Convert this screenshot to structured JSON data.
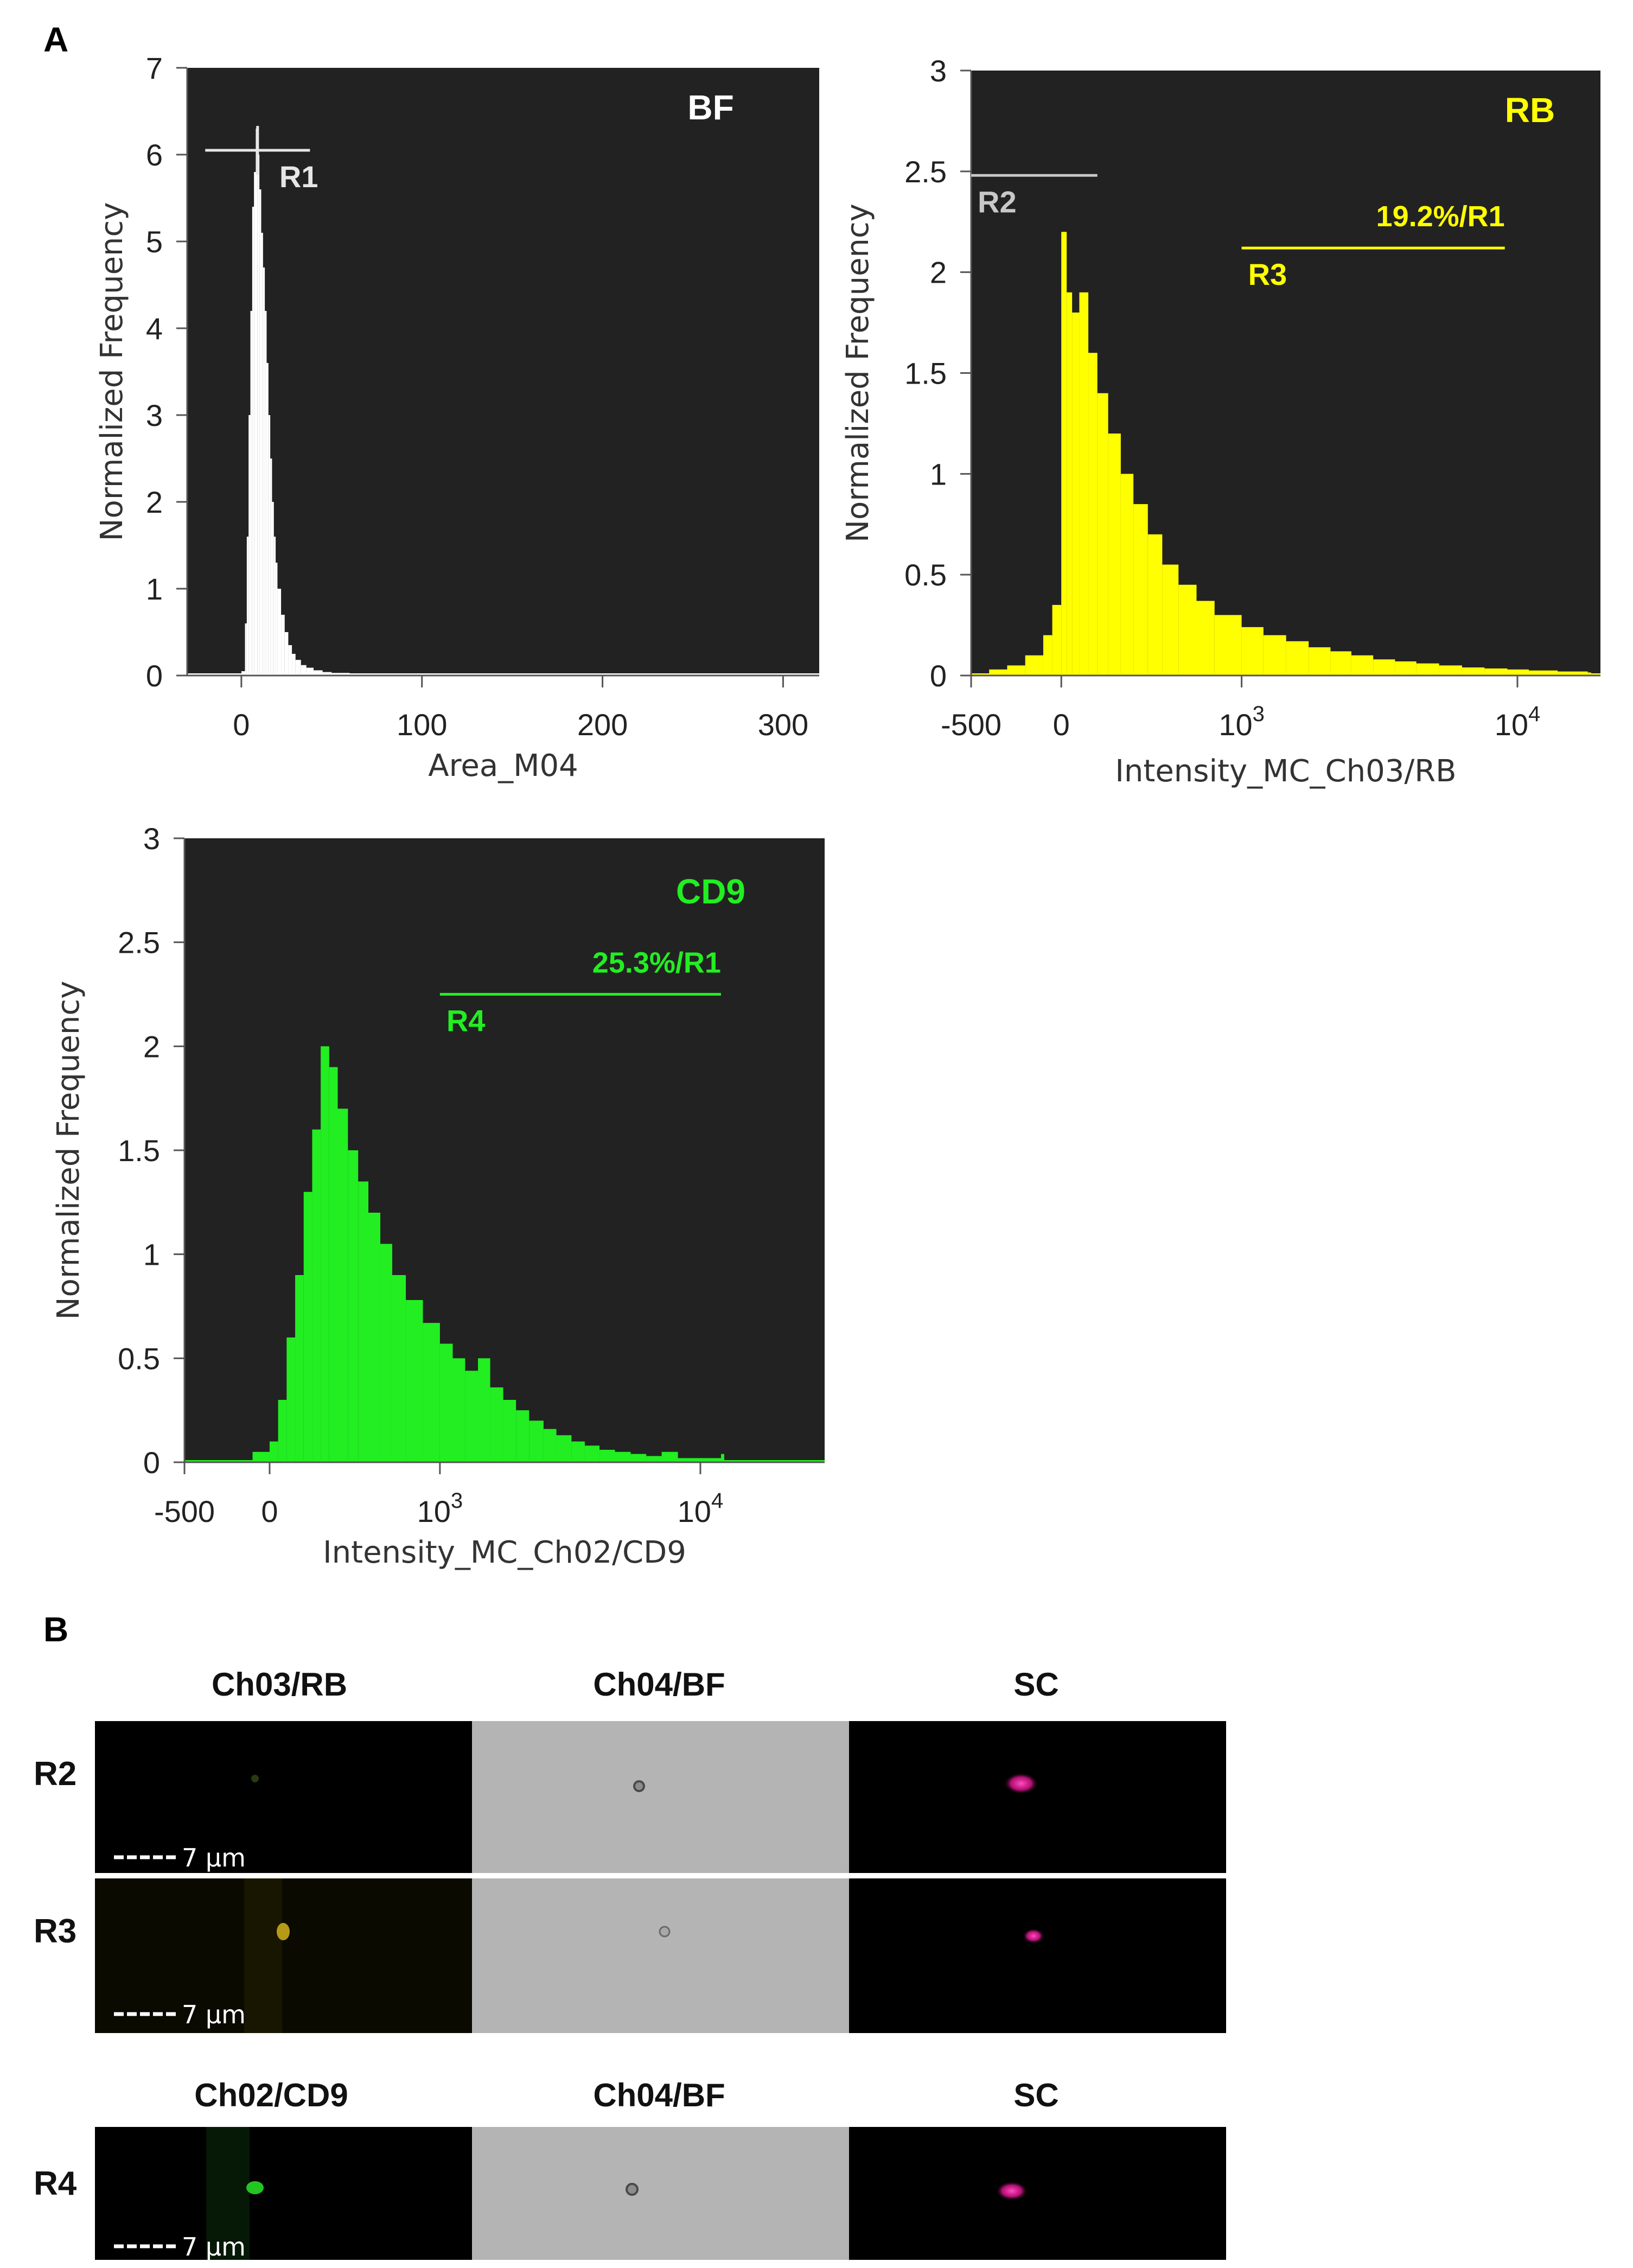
{
  "panel_a_label": "A",
  "panel_b_label": "B",
  "chart_data": [
    {
      "type": "histogram",
      "channel_label": "BF",
      "label_color": "#ffffff",
      "fill_color": "#ffffff",
      "xlabel": "Area_M04",
      "ylabel": "Normalized Frequency",
      "xlim": [
        -30,
        320
      ],
      "ylim": [
        0,
        7
      ],
      "xtick_labels": [
        "0",
        "100",
        "200",
        "300"
      ],
      "xtick_values": [
        0,
        100,
        200,
        300
      ],
      "ytick_labels": [
        "0",
        "1",
        "2",
        "3",
        "4",
        "5",
        "6",
        "7"
      ],
      "ytick_values": [
        0,
        1,
        2,
        3,
        4,
        5,
        6,
        7
      ],
      "gates": [
        {
          "name": "R1",
          "x_start": -20,
          "x_end": 38,
          "y": 6.05,
          "color": "#e6e6e6",
          "marker_x": 9,
          "percent": ""
        }
      ],
      "bins": [
        [
          0,
          0.05
        ],
        [
          2,
          0.6
        ],
        [
          3,
          1.6
        ],
        [
          4,
          3.0
        ],
        [
          5,
          4.2
        ],
        [
          6,
          5.4
        ],
        [
          7,
          5.8
        ],
        [
          8,
          6.3
        ],
        [
          9,
          6.0
        ],
        [
          10,
          5.6
        ],
        [
          11,
          5.1
        ],
        [
          12,
          4.7
        ],
        [
          13,
          4.2
        ],
        [
          14,
          3.6
        ],
        [
          15,
          3.0
        ],
        [
          16,
          2.5
        ],
        [
          17,
          2.0
        ],
        [
          18,
          1.6
        ],
        [
          19,
          1.3
        ],
        [
          20,
          1.0
        ],
        [
          22,
          0.7
        ],
        [
          24,
          0.5
        ],
        [
          26,
          0.35
        ],
        [
          28,
          0.25
        ],
        [
          30,
          0.18
        ],
        [
          33,
          0.12
        ],
        [
          36,
          0.09
        ],
        [
          40,
          0.06
        ],
        [
          45,
          0.04
        ],
        [
          50,
          0.03
        ],
        [
          60,
          0.02
        ],
        [
          70,
          0.015
        ],
        [
          80,
          0.01
        ]
      ]
    },
    {
      "type": "histogram",
      "channel_label": "RB",
      "label_color": "#ffff00",
      "fill_color": "#ffff00",
      "xlabel": "Intensity_MC_Ch03/RB",
      "ylabel": "Normalized Frequency",
      "xlim": [
        -500,
        20000
      ],
      "ylim": [
        0,
        3
      ],
      "xtick_labels": [
        "-500",
        "0",
        "10^3",
        "10^4"
      ],
      "xtick_values": [
        -500,
        0,
        1000,
        10000
      ],
      "ytick_labels": [
        "0",
        "0.5",
        "1",
        "1.5",
        "2",
        "2.5",
        "3"
      ],
      "ytick_values": [
        0,
        0.5,
        1,
        1.5,
        2,
        2.5,
        3
      ],
      "gates": [
        {
          "name": "R2",
          "x_start": -500,
          "x_end": 200,
          "y": 2.48,
          "color": "#c8c8c8",
          "percent": ""
        },
        {
          "name": "R3",
          "x_start": 1000,
          "x_end": 9000,
          "y": 2.12,
          "color": "#ffff00",
          "percent": "19.2%/R1"
        }
      ],
      "bins": [
        [
          -400,
          0.03
        ],
        [
          -300,
          0.05
        ],
        [
          -200,
          0.1
        ],
        [
          -100,
          0.2
        ],
        [
          -50,
          0.35
        ],
        [
          0,
          2.2
        ],
        [
          30,
          1.9
        ],
        [
          60,
          1.8
        ],
        [
          100,
          1.9
        ],
        [
          150,
          1.6
        ],
        [
          200,
          1.4
        ],
        [
          260,
          1.2
        ],
        [
          330,
          1.0
        ],
        [
          400,
          0.85
        ],
        [
          480,
          0.7
        ],
        [
          560,
          0.55
        ],
        [
          650,
          0.45
        ],
        [
          750,
          0.37
        ],
        [
          850,
          0.3
        ],
        [
          1000,
          0.24
        ],
        [
          1200,
          0.2
        ],
        [
          1450,
          0.17
        ],
        [
          1750,
          0.14
        ],
        [
          2100,
          0.12
        ],
        [
          2500,
          0.1
        ],
        [
          3000,
          0.08
        ],
        [
          3600,
          0.07
        ],
        [
          4300,
          0.06
        ],
        [
          5200,
          0.05
        ],
        [
          6300,
          0.04
        ],
        [
          7600,
          0.035
        ],
        [
          9200,
          0.03
        ],
        [
          11000,
          0.025
        ],
        [
          14000,
          0.02
        ],
        [
          18000,
          0.015
        ]
      ]
    },
    {
      "type": "histogram",
      "channel_label": "CD9",
      "label_color": "#22ee22",
      "fill_color": "#22ee22",
      "xlabel": "Intensity_MC_Ch02/CD9",
      "ylabel": "Normalized Frequency",
      "xlim": [
        -500,
        30000
      ],
      "ylim": [
        0,
        3
      ],
      "xtick_labels": [
        "-500",
        "0",
        "10^3",
        "10^4"
      ],
      "xtick_values": [
        -500,
        0,
        1000,
        10000
      ],
      "ytick_labels": [
        "0",
        "0.5",
        "1",
        "1.5",
        "2",
        "2.5",
        "3"
      ],
      "ytick_values": [
        0,
        0.5,
        1,
        1.5,
        2,
        2.5,
        3
      ],
      "gates": [
        {
          "name": "R4",
          "x_start": 1000,
          "x_end": 12000,
          "y": 2.25,
          "color": "#22ee22",
          "percent": "25.3%/R1"
        }
      ],
      "bins": [
        [
          -100,
          0.05
        ],
        [
          0,
          0.1
        ],
        [
          50,
          0.3
        ],
        [
          100,
          0.6
        ],
        [
          150,
          0.9
        ],
        [
          200,
          1.3
        ],
        [
          250,
          1.6
        ],
        [
          300,
          2.0
        ],
        [
          350,
          1.9
        ],
        [
          400,
          1.7
        ],
        [
          460,
          1.5
        ],
        [
          520,
          1.35
        ],
        [
          580,
          1.2
        ],
        [
          650,
          1.05
        ],
        [
          720,
          0.9
        ],
        [
          800,
          0.78
        ],
        [
          900,
          0.67
        ],
        [
          1000,
          0.57
        ],
        [
          1120,
          0.5
        ],
        [
          1250,
          0.44
        ],
        [
          1400,
          0.5
        ],
        [
          1560,
          0.36
        ],
        [
          1750,
          0.3
        ],
        [
          1960,
          0.25
        ],
        [
          2200,
          0.2
        ],
        [
          2500,
          0.16
        ],
        [
          2800,
          0.13
        ],
        [
          3200,
          0.1
        ],
        [
          3600,
          0.08
        ],
        [
          4100,
          0.06
        ],
        [
          4700,
          0.05
        ],
        [
          5400,
          0.04
        ],
        [
          6200,
          0.03
        ],
        [
          7100,
          0.05
        ],
        [
          8200,
          0.02
        ],
        [
          9400,
          0.02
        ],
        [
          12000,
          0.04
        ]
      ]
    }
  ],
  "panel_b": {
    "group1_headers": [
      "Ch03/RB",
      "Ch04/BF",
      "SC"
    ],
    "group2_headers": [
      "Ch02/CD9",
      "Ch04/BF",
      "SC"
    ],
    "rows": [
      {
        "label": "R2",
        "fluor_color": "#2a3a10",
        "sc_color": "#ff2aa8",
        "scale_label": "7 µm"
      },
      {
        "label": "R3",
        "fluor_color": "#b59a18",
        "sc_color": "#e2169a",
        "scale_label": "7 µm"
      },
      {
        "label": "R4",
        "fluor_color": "#22c522",
        "sc_color": "#ff1aa0",
        "scale_label": "7 µm"
      }
    ]
  }
}
